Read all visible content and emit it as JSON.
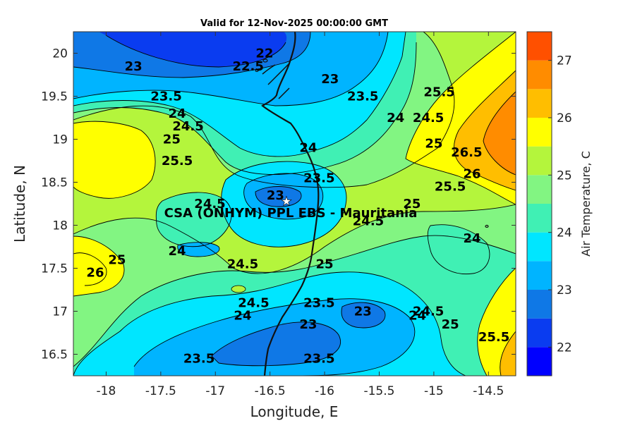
{
  "chart_data": {
    "type": "heatmap",
    "subtype": "filled-contour-map",
    "title": "Valid for 12-Nov-2025 00:00:00 GMT",
    "xlabel": "Longitude, E",
    "ylabel": "Latitude, N",
    "xlim": [
      -18.3,
      -14.25
    ],
    "ylim": [
      16.25,
      20.25
    ],
    "xticks": [
      -18,
      -17.5,
      -17,
      -16.5,
      -16,
      -15.5,
      -15,
      -14.5
    ],
    "xtick_labels": [
      "-18",
      "-17.5",
      "-17",
      "-16.5",
      "-16",
      "-15.5",
      "-15",
      "-14.5"
    ],
    "yticks": [
      16.5,
      17,
      17.5,
      18,
      18.5,
      19,
      19.5,
      20
    ],
    "ytick_labels": [
      "16.5",
      "17",
      "17.5",
      "18",
      "18.5",
      "19",
      "19.5",
      "20"
    ],
    "colorbar": {
      "label": "Air Temperature, C",
      "range": [
        21.5,
        27.5
      ],
      "ticks": [
        22,
        23,
        24,
        25,
        26,
        27
      ],
      "tick_labels": [
        "22",
        "23",
        "24",
        "25",
        "26",
        "27"
      ],
      "levels": [
        21.5,
        22,
        22.5,
        23,
        23.5,
        24,
        24.5,
        25,
        25.5,
        26,
        26.5,
        27,
        27.5
      ],
      "colors": [
        "#0000ff",
        "#0a3cf0",
        "#0f78e6",
        "#00b4ff",
        "#00e6ff",
        "#40f0b4",
        "#82f582",
        "#b4f53c",
        "#ffff00",
        "#ffbe00",
        "#ff8c00",
        "#ff5000",
        "#ff0000"
      ]
    },
    "contour_labels": [
      {
        "text": "22",
        "lon": -16.55,
        "lat": 20.0
      },
      {
        "text": "22.5",
        "lon": -16.7,
        "lat": 19.85
      },
      {
        "text": "23",
        "lon": -17.75,
        "lat": 19.85
      },
      {
        "text": "23",
        "lon": -15.95,
        "lat": 19.7
      },
      {
        "text": "23.5",
        "lon": -17.45,
        "lat": 19.5
      },
      {
        "text": "23.5",
        "lon": -15.65,
        "lat": 19.5
      },
      {
        "text": "24",
        "lon": -17.35,
        "lat": 19.3
      },
      {
        "text": "24",
        "lon": -15.35,
        "lat": 19.25
      },
      {
        "text": "24.5",
        "lon": -17.25,
        "lat": 19.15
      },
      {
        "text": "24.5",
        "lon": -15.05,
        "lat": 19.25
      },
      {
        "text": "25",
        "lon": -17.4,
        "lat": 19.0
      },
      {
        "text": "25.5",
        "lon": -17.35,
        "lat": 18.75
      },
      {
        "text": "24",
        "lon": -16.15,
        "lat": 18.9
      },
      {
        "text": "23.5",
        "lon": -16.05,
        "lat": 18.55
      },
      {
        "text": "25",
        "lon": -15.0,
        "lat": 18.95
      },
      {
        "text": "25.5",
        "lon": -14.95,
        "lat": 19.55
      },
      {
        "text": "26.5",
        "lon": -14.7,
        "lat": 18.85
      },
      {
        "text": "26",
        "lon": -14.65,
        "lat": 18.6
      },
      {
        "text": "25.5",
        "lon": -14.85,
        "lat": 18.45
      },
      {
        "text": "25",
        "lon": -15.2,
        "lat": 18.25
      },
      {
        "text": "23",
        "lon": -16.45,
        "lat": 18.35
      },
      {
        "text": "24.5",
        "lon": -17.05,
        "lat": 18.25
      },
      {
        "text": "24.5",
        "lon": -15.6,
        "lat": 18.05
      },
      {
        "text": "24",
        "lon": -14.65,
        "lat": 17.85
      },
      {
        "text": "24",
        "lon": -17.35,
        "lat": 17.7
      },
      {
        "text": "25",
        "lon": -17.9,
        "lat": 17.6
      },
      {
        "text": "26",
        "lon": -18.1,
        "lat": 17.45
      },
      {
        "text": "24.5",
        "lon": -16.75,
        "lat": 17.55
      },
      {
        "text": "25",
        "lon": -16.0,
        "lat": 17.55
      },
      {
        "text": "24.5",
        "lon": -16.65,
        "lat": 17.1
      },
      {
        "text": "24",
        "lon": -16.75,
        "lat": 16.95
      },
      {
        "text": "23.5",
        "lon": -16.05,
        "lat": 17.1
      },
      {
        "text": "23",
        "lon": -16.15,
        "lat": 16.85
      },
      {
        "text": "23",
        "lon": -15.65,
        "lat": 17.0
      },
      {
        "text": "24",
        "lon": -15.15,
        "lat": 16.95
      },
      {
        "text": "24.5",
        "lon": -15.05,
        "lat": 17.0
      },
      {
        "text": "25",
        "lon": -14.85,
        "lat": 16.85
      },
      {
        "text": "25.5",
        "lon": -14.45,
        "lat": 16.7
      },
      {
        "text": "23.5",
        "lon": -17.15,
        "lat": 16.45
      },
      {
        "text": "23.5",
        "lon": -16.05,
        "lat": 16.45
      }
    ],
    "site": {
      "label": "CSA (ONHYM) PPL EBS  - Mauritania",
      "lon": -16.35,
      "lat": 18.28,
      "marker": "star"
    },
    "coastline": "black line, Mauritanian coast"
  }
}
